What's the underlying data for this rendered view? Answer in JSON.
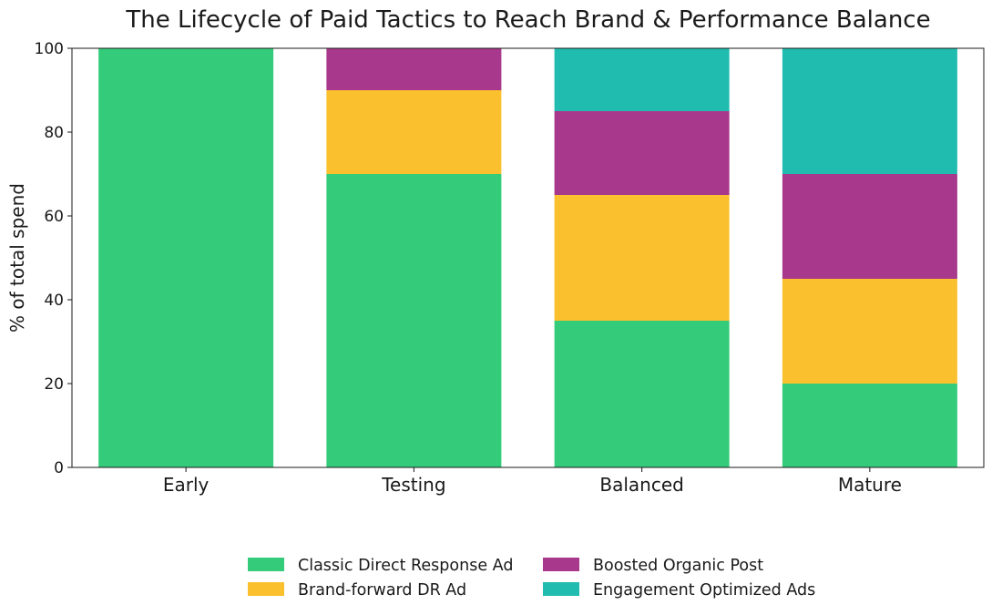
{
  "chart_data": {
    "type": "bar",
    "stacked": true,
    "title": "The Lifecycle of Paid Tactics to Reach Brand & Performance Balance",
    "xlabel": "",
    "ylabel": "% of total spend",
    "ylim": [
      0,
      100
    ],
    "yticks": [
      0,
      20,
      40,
      60,
      80,
      100
    ],
    "categories": [
      "Early",
      "Testing",
      "Balanced",
      "Mature"
    ],
    "series": [
      {
        "name": "Classic Direct Response Ad",
        "color": "#34cc7a",
        "values": [
          100,
          70,
          35,
          20
        ]
      },
      {
        "name": "Brand-forward DR Ad",
        "color": "#fbc02d",
        "values": [
          0,
          20,
          30,
          25
        ]
      },
      {
        "name": "Boosted Organic Post",
        "color": "#a8388b",
        "values": [
          0,
          10,
          20,
          25
        ]
      },
      {
        "name": "Engagement Optimized Ads",
        "color": "#20bcb0",
        "values": [
          0,
          0,
          15,
          30
        ]
      }
    ],
    "grid": false,
    "legend": "bottom-center"
  }
}
